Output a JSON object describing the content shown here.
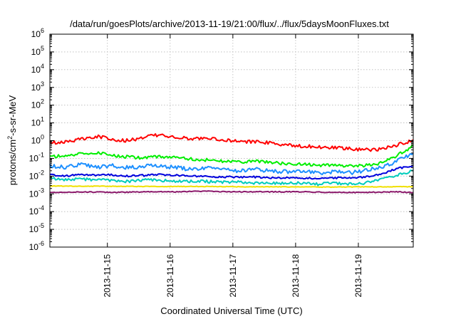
{
  "chart_data": {
    "type": "line",
    "title": "/data/run/goesPlots/archive/2013-11-19/21:00/flux/../flux/5daysMoonFluxes.txt",
    "xlabel": "Coordinated Universal Time (UTC)",
    "ylabel": {
      "base": "protons/cm",
      "sup": "2",
      "rest": "-s-sr-MeV"
    },
    "yscale": "log",
    "ylim_exponent": [
      -6,
      6
    ],
    "y_ticks": [
      {
        "base": "10",
        "exp": "-6"
      },
      {
        "base": "10",
        "exp": "-5"
      },
      {
        "base": "10",
        "exp": "-4"
      },
      {
        "base": "10",
        "exp": "-3"
      },
      {
        "base": "10",
        "exp": "-2"
      },
      {
        "base": "10",
        "exp": "-1"
      },
      {
        "base": "10",
        "exp": "0"
      },
      {
        "base": "10",
        "exp": "1"
      },
      {
        "base": "10",
        "exp": "2"
      },
      {
        "base": "10",
        "exp": "3"
      },
      {
        "base": "10",
        "exp": "4"
      },
      {
        "base": "10",
        "exp": "5"
      },
      {
        "base": "10",
        "exp": "6"
      }
    ],
    "xlim": [
      "2013-11-14T02:00",
      "2013-11-19T21:00"
    ],
    "x_ticks": [
      "2013-11-15",
      "2013-11-16",
      "2013-11-17",
      "2013-11-18",
      "2013-11-19"
    ],
    "grid": true,
    "series": [
      {
        "color": "#ff0000",
        "points": [
          [
            "2013-11-14T02:00",
            0.75
          ],
          [
            "2013-11-14T08:00",
            0.9
          ],
          [
            "2013-11-14T14:00",
            1.2
          ],
          [
            "2013-11-14T20:00",
            1.7
          ],
          [
            "2013-11-15T02:00",
            1.2
          ],
          [
            "2013-11-15T08:00",
            1.0
          ],
          [
            "2013-11-15T14:00",
            1.5
          ],
          [
            "2013-11-15T20:00",
            2.2
          ],
          [
            "2013-11-16T02:00",
            1.5
          ],
          [
            "2013-11-16T08:00",
            1.3
          ],
          [
            "2013-11-16T14:00",
            1.4
          ],
          [
            "2013-11-16T20:00",
            1.1
          ],
          [
            "2013-11-17T02:00",
            0.9
          ],
          [
            "2013-11-17T08:00",
            0.85
          ],
          [
            "2013-11-17T14:00",
            0.75
          ],
          [
            "2013-11-17T20:00",
            0.6
          ],
          [
            "2013-11-18T02:00",
            0.5
          ],
          [
            "2013-11-18T08:00",
            0.45
          ],
          [
            "2013-11-18T14:00",
            0.4
          ],
          [
            "2013-11-18T20:00",
            0.35
          ],
          [
            "2013-11-19T02:00",
            0.3
          ],
          [
            "2013-11-19T08:00",
            0.32
          ],
          [
            "2013-11-19T14:00",
            0.5
          ],
          [
            "2013-11-19T21:00",
            1.1
          ]
        ]
      },
      {
        "color": "#00ee00",
        "points": [
          [
            "2013-11-14T02:00",
            0.12
          ],
          [
            "2013-11-14T08:00",
            0.15
          ],
          [
            "2013-11-14T14:00",
            0.18
          ],
          [
            "2013-11-14T20:00",
            0.2
          ],
          [
            "2013-11-15T02:00",
            0.15
          ],
          [
            "2013-11-15T08:00",
            0.12
          ],
          [
            "2013-11-15T14:00",
            0.1
          ],
          [
            "2013-11-15T20:00",
            0.13
          ],
          [
            "2013-11-16T02:00",
            0.11
          ],
          [
            "2013-11-16T08:00",
            0.09
          ],
          [
            "2013-11-16T14:00",
            0.08
          ],
          [
            "2013-11-16T20:00",
            0.07
          ],
          [
            "2013-11-17T02:00",
            0.06
          ],
          [
            "2013-11-17T08:00",
            0.07
          ],
          [
            "2013-11-17T14:00",
            0.06
          ],
          [
            "2013-11-17T20:00",
            0.05
          ],
          [
            "2013-11-18T02:00",
            0.05
          ],
          [
            "2013-11-18T08:00",
            0.04
          ],
          [
            "2013-11-18T14:00",
            0.04
          ],
          [
            "2013-11-18T20:00",
            0.035
          ],
          [
            "2013-11-19T02:00",
            0.04
          ],
          [
            "2013-11-19T08:00",
            0.05
          ],
          [
            "2013-11-19T14:00",
            0.12
          ],
          [
            "2013-11-19T21:00",
            0.5
          ]
        ]
      },
      {
        "color": "#1e90ff",
        "points": [
          [
            "2013-11-14T02:00",
            0.04
          ],
          [
            "2013-11-14T08:00",
            0.03
          ],
          [
            "2013-11-14T14:00",
            0.05
          ],
          [
            "2013-11-14T20:00",
            0.03
          ],
          [
            "2013-11-15T02:00",
            0.04
          ],
          [
            "2013-11-15T08:00",
            0.03
          ],
          [
            "2013-11-15T14:00",
            0.035
          ],
          [
            "2013-11-15T20:00",
            0.04
          ],
          [
            "2013-11-16T02:00",
            0.03
          ],
          [
            "2013-11-16T08:00",
            0.025
          ],
          [
            "2013-11-16T14:00",
            0.03
          ],
          [
            "2013-11-16T20:00",
            0.025
          ],
          [
            "2013-11-17T02:00",
            0.02
          ],
          [
            "2013-11-17T08:00",
            0.025
          ],
          [
            "2013-11-17T14:00",
            0.02
          ],
          [
            "2013-11-17T20:00",
            0.018
          ],
          [
            "2013-11-18T02:00",
            0.02
          ],
          [
            "2013-11-18T08:00",
            0.015
          ],
          [
            "2013-11-18T14:00",
            0.018
          ],
          [
            "2013-11-18T20:00",
            0.015
          ],
          [
            "2013-11-19T02:00",
            0.02
          ],
          [
            "2013-11-19T08:00",
            0.03
          ],
          [
            "2013-11-19T14:00",
            0.06
          ],
          [
            "2013-11-19T21:00",
            0.2
          ]
        ]
      },
      {
        "color": "#00ccbb",
        "points": [
          [
            "2013-11-14T02:00",
            0.008
          ],
          [
            "2013-11-14T08:00",
            0.006
          ],
          [
            "2013-11-14T14:00",
            0.007
          ],
          [
            "2013-11-14T20:00",
            0.006
          ],
          [
            "2013-11-15T02:00",
            0.006
          ],
          [
            "2013-11-15T08:00",
            0.005
          ],
          [
            "2013-11-15T14:00",
            0.006
          ],
          [
            "2013-11-15T20:00",
            0.006
          ],
          [
            "2013-11-16T02:00",
            0.005
          ],
          [
            "2013-11-16T08:00",
            0.005
          ],
          [
            "2013-11-16T14:00",
            0.005
          ],
          [
            "2013-11-16T20:00",
            0.0045
          ],
          [
            "2013-11-17T02:00",
            0.0045
          ],
          [
            "2013-11-17T08:00",
            0.004
          ],
          [
            "2013-11-17T14:00",
            0.004
          ],
          [
            "2013-11-17T20:00",
            0.004
          ],
          [
            "2013-11-18T02:00",
            0.004
          ],
          [
            "2013-11-18T08:00",
            0.0035
          ],
          [
            "2013-11-18T14:00",
            0.004
          ],
          [
            "2013-11-18T20:00",
            0.0035
          ],
          [
            "2013-11-19T02:00",
            0.004
          ],
          [
            "2013-11-19T08:00",
            0.006
          ],
          [
            "2013-11-19T14:00",
            0.01
          ],
          [
            "2013-11-19T21:00",
            0.02
          ]
        ]
      },
      {
        "color": "#0000dd",
        "points": [
          [
            "2013-11-14T02:00",
            0.012
          ],
          [
            "2013-11-14T08:00",
            0.01
          ],
          [
            "2013-11-14T14:00",
            0.013
          ],
          [
            "2013-11-14T20:00",
            0.011
          ],
          [
            "2013-11-15T02:00",
            0.012
          ],
          [
            "2013-11-15T08:00",
            0.01
          ],
          [
            "2013-11-15T14:00",
            0.011
          ],
          [
            "2013-11-15T20:00",
            0.012
          ],
          [
            "2013-11-16T02:00",
            0.011
          ],
          [
            "2013-11-16T08:00",
            0.01
          ],
          [
            "2013-11-16T14:00",
            0.01
          ],
          [
            "2013-11-16T20:00",
            0.009
          ],
          [
            "2013-11-17T02:00",
            0.009
          ],
          [
            "2013-11-17T08:00",
            0.009
          ],
          [
            "2013-11-17T14:00",
            0.008
          ],
          [
            "2013-11-17T20:00",
            0.008
          ],
          [
            "2013-11-18T02:00",
            0.008
          ],
          [
            "2013-11-18T08:00",
            0.0075
          ],
          [
            "2013-11-18T14:00",
            0.008
          ],
          [
            "2013-11-18T20:00",
            0.0075
          ],
          [
            "2013-11-19T02:00",
            0.009
          ],
          [
            "2013-11-19T08:00",
            0.012
          ],
          [
            "2013-11-19T14:00",
            0.025
          ],
          [
            "2013-11-19T21:00",
            0.04
          ]
        ]
      },
      {
        "color": "#f0e000",
        "points": [
          [
            "2013-11-14T02:00",
            0.0028
          ],
          [
            "2013-11-14T14:00",
            0.0027
          ],
          [
            "2013-11-15T02:00",
            0.0027
          ],
          [
            "2013-11-15T14:00",
            0.0026
          ],
          [
            "2013-11-16T02:00",
            0.0026
          ],
          [
            "2013-11-16T14:00",
            0.0026
          ],
          [
            "2013-11-17T02:00",
            0.0025
          ],
          [
            "2013-11-17T14:00",
            0.0025
          ],
          [
            "2013-11-18T02:00",
            0.0025
          ],
          [
            "2013-11-18T14:00",
            0.0024
          ],
          [
            "2013-11-19T02:00",
            0.0025
          ],
          [
            "2013-11-19T14:00",
            0.0025
          ],
          [
            "2013-11-19T21:00",
            0.0025
          ]
        ]
      },
      {
        "color": "#8b1a6b",
        "points": [
          [
            "2013-11-14T02:00",
            0.0012
          ],
          [
            "2013-11-14T14:00",
            0.0013
          ],
          [
            "2013-11-15T02:00",
            0.0012
          ],
          [
            "2013-11-15T14:00",
            0.0013
          ],
          [
            "2013-11-16T02:00",
            0.0013
          ],
          [
            "2013-11-16T14:00",
            0.0014
          ],
          [
            "2013-11-17T02:00",
            0.0013
          ],
          [
            "2013-11-17T14:00",
            0.0013
          ],
          [
            "2013-11-18T02:00",
            0.0013
          ],
          [
            "2013-11-18T14:00",
            0.0012
          ],
          [
            "2013-11-19T02:00",
            0.0012
          ],
          [
            "2013-11-19T14:00",
            0.0013
          ],
          [
            "2013-11-19T21:00",
            0.0012
          ]
        ]
      }
    ]
  }
}
